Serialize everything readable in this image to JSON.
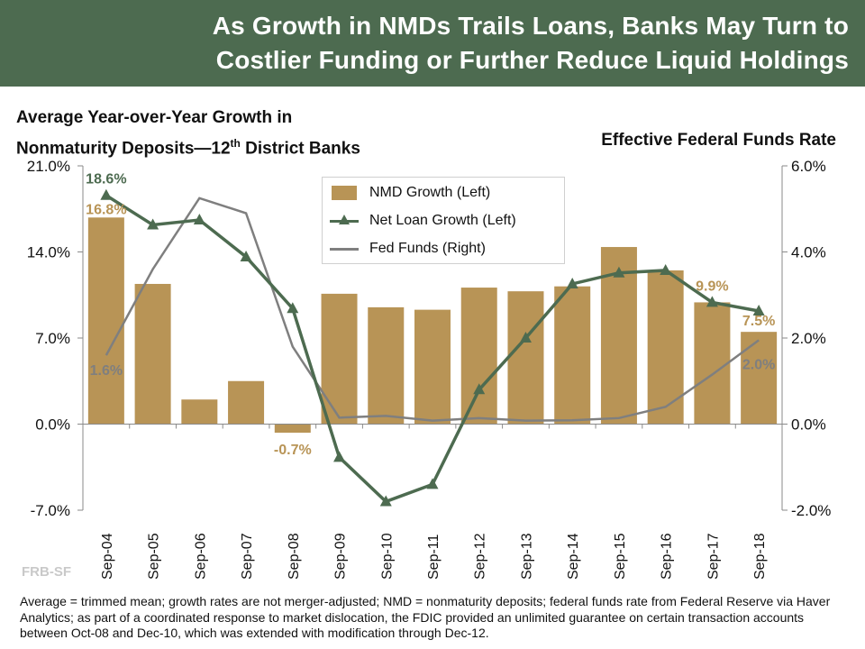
{
  "header": {
    "title_line1": "As Growth in NMDs Trails Loans, Banks May Turn to",
    "title_line2": "Costlier Funding or Further Reduce Liquid Holdings"
  },
  "left_axis_title": {
    "line1": "Average Year-over-Year  Growth in",
    "line2a": "Nonmaturity Deposits—12",
    "line2_sup": "th",
    "line2b": " District Banks"
  },
  "right_axis_title": "Effective Federal Funds Rate",
  "watermark": "FRB-SF",
  "footnote": "Average = trimmed mean; growth rates are not merger-adjusted; NMD = nonmaturity  deposits; federal funds rate from Federal Reserve via Haver Analytics;  as part of a coordinated response to market dislocation, the FDIC provided an unlimited guarantee on certain transaction accounts between Oct-08 and Dec-10, which was extended with modification through  Dec-12.",
  "legend": {
    "nmd": "NMD Growth (Left)",
    "loan": "Net Loan Growth (Left)",
    "fed": "Fed Funds (Right)"
  },
  "colors": {
    "bar": "#b89456",
    "loan": "#4d6b50",
    "fed": "#7f7f7f",
    "banner": "#4d6b50",
    "bar_label": "#b89456"
  },
  "chart_data": {
    "type": "bar",
    "categories": [
      "Sep-04",
      "Sep-05",
      "Sep-06",
      "Sep-07",
      "Sep-08",
      "Sep-09",
      "Sep-10",
      "Sep-11",
      "Sep-12",
      "Sep-13",
      "Sep-14",
      "Sep-15",
      "Sep-16",
      "Sep-17",
      "Sep-18"
    ],
    "series": [
      {
        "name": "NMD Growth (Left)",
        "type": "bar",
        "axis": "left",
        "values": [
          16.8,
          11.4,
          2.0,
          3.5,
          -0.7,
          10.6,
          9.5,
          9.3,
          11.1,
          10.8,
          11.2,
          14.4,
          12.5,
          9.9,
          7.5
        ]
      },
      {
        "name": "Net Loan Growth (Left)",
        "type": "line",
        "axis": "left",
        "values": [
          18.6,
          16.2,
          16.6,
          13.6,
          9.4,
          -2.7,
          -6.3,
          -4.9,
          2.8,
          7.0,
          11.4,
          12.3,
          12.5,
          9.9,
          9.2
        ]
      },
      {
        "name": "Fed Funds (Right)",
        "type": "line",
        "axis": "right",
        "values": [
          1.6,
          3.6,
          5.25,
          4.9,
          1.8,
          0.15,
          0.19,
          0.08,
          0.14,
          0.08,
          0.09,
          0.14,
          0.4,
          1.15,
          1.95
        ]
      }
    ],
    "yleft": {
      "range": [
        -7.0,
        21.0
      ],
      "ticks": [
        "21.0%",
        "14.0%",
        "7.0%",
        "0.0%",
        "-7.0%"
      ],
      "tick_values": [
        21,
        14,
        7,
        0,
        -7
      ]
    },
    "yright": {
      "range": [
        -2.0,
        6.0
      ],
      "ticks": [
        "6.0%",
        "4.0%",
        "2.0%",
        "0.0%",
        "-2.0%"
      ],
      "tick_values": [
        6,
        4,
        2,
        0,
        -2
      ]
    },
    "data_labels": [
      {
        "series": "Net Loan Growth (Left)",
        "index": 0,
        "text": "18.6%"
      },
      {
        "series": "NMD Growth (Left)",
        "index": 0,
        "text": "16.8%"
      },
      {
        "series": "Fed Funds (Right)",
        "index": 0,
        "text": "1.6%"
      },
      {
        "series": "NMD Growth (Left)",
        "index": 4,
        "text": "-0.7%"
      },
      {
        "series": "NMD Growth (Left)",
        "index": 13,
        "text": "9.9%"
      },
      {
        "series": "NMD Growth (Left)",
        "index": 14,
        "text": "7.5%"
      },
      {
        "series": "Fed Funds (Right)",
        "index": 14,
        "text": "2.0%"
      }
    ],
    "legend_position": "top-center",
    "grid": false
  }
}
